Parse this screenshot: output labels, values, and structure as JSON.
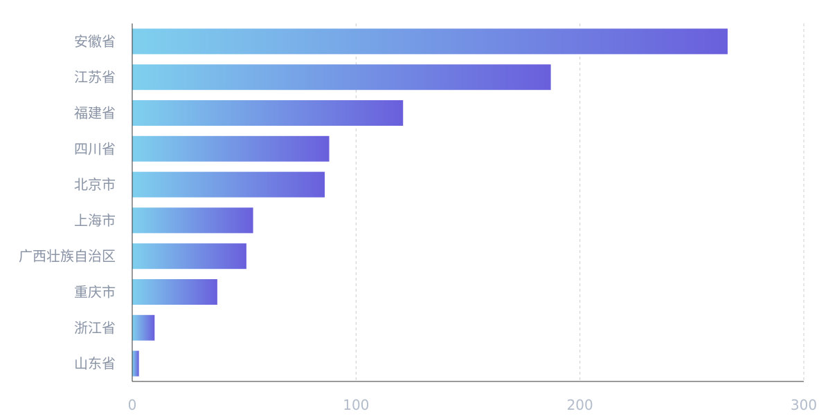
{
  "chart_data": {
    "type": "bar",
    "orientation": "horizontal",
    "categories": [
      "安徽省",
      "江苏省",
      "福建省",
      "四川省",
      "北京市",
      "上海市",
      "广西壮族自治区",
      "重庆市",
      "浙江省",
      "山东省"
    ],
    "values": [
      266,
      187,
      121,
      88,
      86,
      54,
      51,
      38,
      10,
      3
    ],
    "xlim": [
      0,
      300
    ],
    "xticks": [
      0,
      100,
      200,
      300
    ],
    "grid": "vertical dashed",
    "title": "",
    "xlabel": "",
    "ylabel": "",
    "colors": {
      "bar_gradient_start": "#7fd0ee",
      "bar_gradient_end": "#6a5fdc",
      "axis": "#333333",
      "grid": "#cccccc",
      "category_text": "#8a94a6",
      "tick_text": "#b3bccb"
    }
  }
}
